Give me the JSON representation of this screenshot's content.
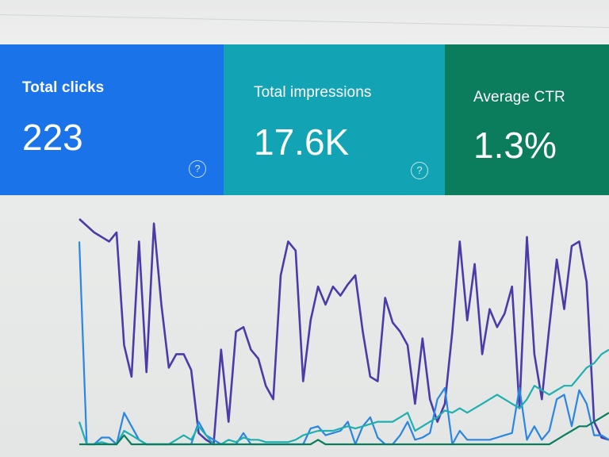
{
  "cards": [
    {
      "label": "Total clicks",
      "value": "223",
      "help": "?",
      "color": "#1a73e8"
    },
    {
      "label": "Total impressions",
      "value": "17.6K",
      "help": "?",
      "color": "#12a4b5"
    },
    {
      "label": "Average CTR",
      "value": "1.3%",
      "color": "#0b7d5d"
    }
  ],
  "chart_data": {
    "type": "line",
    "series": [
      {
        "color": "#4b3aa8",
        "values": [
          100,
          97,
          94,
          92,
          90,
          94,
          44,
          30,
          90,
          32,
          98,
          62,
          34,
          40,
          40,
          33,
          5,
          2,
          0,
          42,
          10,
          50,
          52,
          42,
          38,
          26,
          20,
          75,
          90,
          86,
          28,
          55,
          70,
          62,
          70,
          66,
          71,
          75,
          50,
          30,
          28,
          65,
          54,
          50,
          44,
          18,
          47,
          20,
          10,
          18,
          50,
          90,
          55,
          80,
          40,
          60,
          52,
          58,
          70,
          16,
          92,
          40,
          20,
          52,
          82,
          60,
          88,
          90,
          72,
          10,
          3,
          2
        ]
      },
      {
        "color": "#2a86e0",
        "values": [
          90,
          0,
          0,
          3,
          3,
          0,
          14,
          8,
          2,
          0,
          0,
          0,
          0,
          0,
          0,
          0,
          10,
          4,
          2,
          0,
          0,
          0,
          5,
          0,
          0,
          0,
          0,
          0,
          0,
          0,
          0,
          7,
          8,
          4,
          5,
          6,
          10,
          0,
          8,
          12,
          3,
          0,
          0,
          4,
          10,
          2,
          3,
          5,
          20,
          25,
          0,
          6,
          2,
          2,
          2,
          2,
          3,
          4,
          5,
          25,
          2,
          8,
          2,
          6,
          20,
          22,
          8,
          24,
          18,
          4,
          4,
          2
        ]
      },
      {
        "color": "#1eb0b0",
        "values": [
          10,
          0,
          0,
          1,
          0,
          0,
          6,
          4,
          2,
          0,
          0,
          0,
          0,
          2,
          4,
          2,
          8,
          4,
          0,
          0,
          2,
          1,
          3,
          2,
          2,
          1,
          1,
          1,
          1,
          2,
          4,
          5,
          6,
          6,
          6,
          7,
          8,
          7,
          8,
          9,
          10,
          10,
          10,
          12,
          14,
          6,
          8,
          10,
          12,
          15,
          14,
          16,
          14,
          16,
          18,
          20,
          22,
          20,
          18,
          16,
          20,
          26,
          24,
          22,
          24,
          26,
          26,
          30,
          34,
          36,
          40,
          42
        ]
      },
      {
        "color": "#0b7d5d",
        "values": [
          0,
          0,
          0,
          0,
          0,
          0,
          4,
          0,
          0,
          0,
          0,
          0,
          0,
          0,
          0,
          0,
          0,
          0,
          0,
          0,
          0,
          0,
          0,
          0,
          0,
          0,
          0,
          0,
          0,
          0,
          0,
          0,
          2,
          0,
          0,
          0,
          0,
          0,
          0,
          0,
          0,
          0,
          0,
          0,
          0,
          0,
          0,
          0,
          0,
          0,
          0,
          0,
          0,
          0,
          0,
          0,
          0,
          0,
          0,
          0,
          0,
          0,
          0,
          0,
          2,
          4,
          6,
          8,
          8,
          10,
          12,
          14
        ]
      }
    ],
    "ylim": [
      0,
      100
    ]
  }
}
